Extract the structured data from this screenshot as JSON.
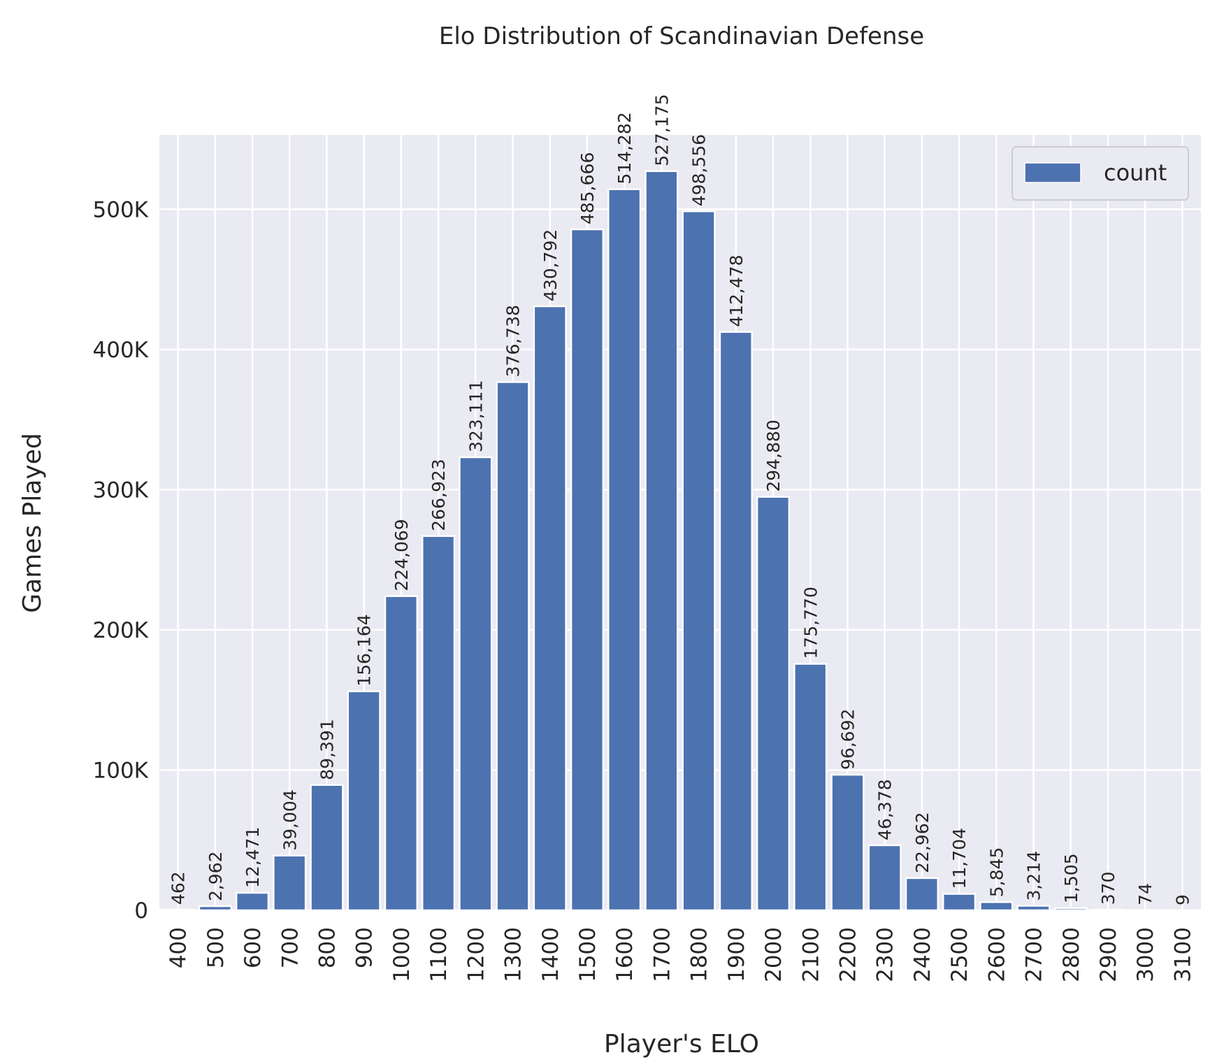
{
  "chart_data": {
    "type": "bar",
    "title": "Elo Distribution of Scandinavian Defense",
    "xlabel": "Player's ELO",
    "ylabel": "Games Played",
    "categories": [
      "400",
      "500",
      "600",
      "700",
      "800",
      "900",
      "1000",
      "1100",
      "1200",
      "1300",
      "1400",
      "1500",
      "1600",
      "1700",
      "1800",
      "1900",
      "2000",
      "2100",
      "2200",
      "2300",
      "2400",
      "2500",
      "2600",
      "2700",
      "2800",
      "2900",
      "3000",
      "3100"
    ],
    "series": [
      {
        "name": "count",
        "values": [
          462,
          2962,
          12471,
          39004,
          89391,
          156164,
          224069,
          266923,
          323111,
          376738,
          430792,
          485666,
          514282,
          527175,
          498556,
          412478,
          294880,
          175770,
          96692,
          46378,
          22962,
          11704,
          5845,
          3214,
          1505,
          370,
          74,
          9
        ],
        "data_labels": [
          "462",
          "2,962",
          "12,471",
          "39,004",
          "89,391",
          "156,164",
          "224,069",
          "266,923",
          "323,111",
          "376,738",
          "430,792",
          "485,666",
          "514,282",
          "527,175",
          "498,556",
          "412,478",
          "294,880",
          "175,770",
          "96,692",
          "46,378",
          "22,962",
          "11,704",
          "5,845",
          "3,214",
          "1,505",
          "370",
          "74",
          "9"
        ]
      }
    ],
    "yticks": [
      0,
      100000,
      200000,
      300000,
      400000,
      500000
    ],
    "ytick_labels": [
      "0",
      "100K",
      "200K",
      "300K",
      "400K",
      "500K"
    ],
    "ylim": [
      0,
      553000
    ],
    "grid": true,
    "legend_position": "top-right",
    "colors": {
      "bar": "#4c72b0",
      "background": "#eaeaf2",
      "grid": "#ffffff",
      "text": "#262626"
    }
  }
}
